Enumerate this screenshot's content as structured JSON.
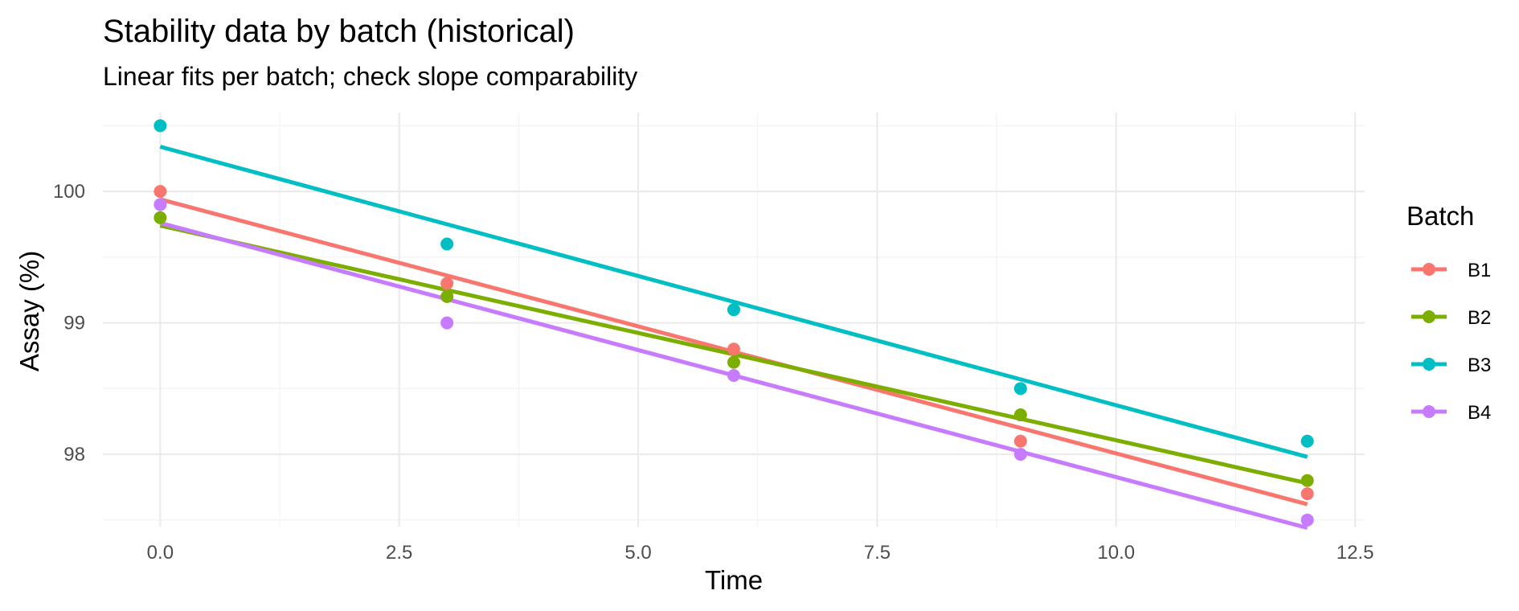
{
  "chart_data": {
    "type": "scatter",
    "title": "Stability data by batch (historical)",
    "subtitle": "Linear fits per batch; check slope comparability",
    "xlabel": "Time",
    "ylabel": "Assay (%)",
    "x": [
      0,
      3,
      6,
      9,
      12
    ],
    "xlim": [
      -0.6,
      12.6
    ],
    "ylim": [
      97.45,
      100.6
    ],
    "x_ticks": [
      0,
      2.5,
      5,
      7.5,
      10,
      12.5
    ],
    "x_tick_labels": [
      "0.0",
      "2.5",
      "5.0",
      "7.5",
      "10.0",
      "12.5"
    ],
    "y_ticks": [
      98,
      99,
      100
    ],
    "y_tick_labels": [
      "98",
      "99",
      "100"
    ],
    "grid": true,
    "legend": {
      "title": "Batch",
      "placement": "right"
    },
    "fit": "linear",
    "series": [
      {
        "name": "B1",
        "color": "#F8766D",
        "values": [
          100.0,
          99.3,
          98.8,
          98.1,
          97.7
        ]
      },
      {
        "name": "B2",
        "color": "#7CAE00",
        "values": [
          99.8,
          99.2,
          98.7,
          98.3,
          97.8
        ]
      },
      {
        "name": "B3",
        "color": "#00BFC4",
        "values": [
          100.5,
          99.6,
          99.1,
          98.5,
          98.1
        ]
      },
      {
        "name": "B4",
        "color": "#C77CFF",
        "values": [
          99.9,
          99.0,
          98.6,
          98.0,
          97.5
        ]
      }
    ]
  }
}
